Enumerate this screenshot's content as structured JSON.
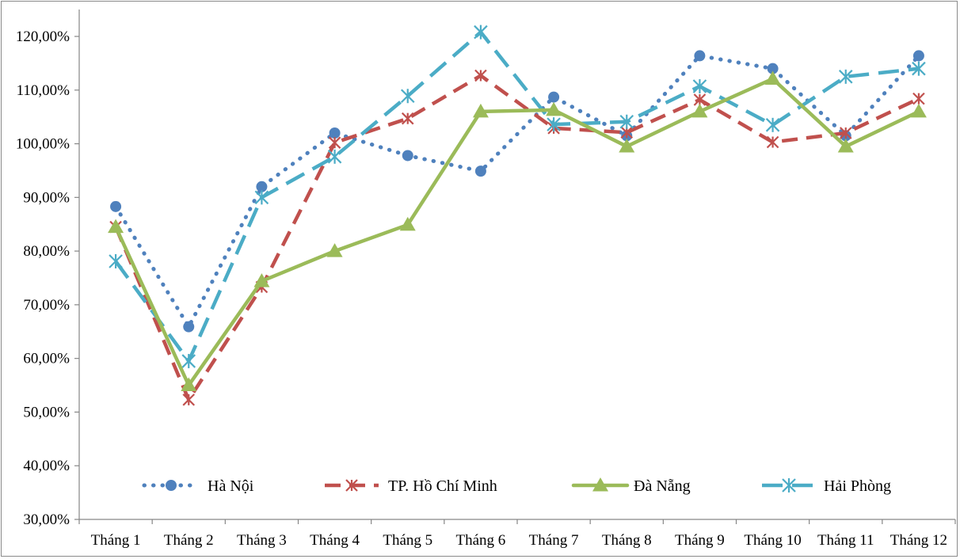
{
  "chart_data": {
    "type": "line",
    "title": "",
    "xlabel": "",
    "ylabel": "",
    "categories": [
      "Tháng 1",
      "Tháng 2",
      "Tháng 3",
      "Tháng 4",
      "Tháng 5",
      "Tháng 6",
      "Tháng 7",
      "Tháng 8",
      "Tháng 9",
      "Tháng 10",
      "Tháng 11",
      "Tháng 12"
    ],
    "y_ticks": [
      "30,00%",
      "40,00%",
      "50,00%",
      "60,00%",
      "70,00%",
      "80,00%",
      "90,00%",
      "100,00%",
      "110,00%",
      "120,00%"
    ],
    "ylim": [
      30,
      125
    ],
    "grid": false,
    "legend_position": "bottom-inside",
    "series": [
      {
        "name": "Hà Nội",
        "color": "#4f81bd",
        "style": "dotted",
        "marker": "circle",
        "values": [
          88.3,
          65.9,
          92.0,
          102.0,
          97.8,
          94.9,
          108.7,
          101.5,
          116.4,
          114.0,
          101.5,
          116.4
        ]
      },
      {
        "name": "TP. Hồ Chí Minh",
        "color": "#c0504d",
        "style": "dashed",
        "marker": "asterisk",
        "values": [
          84.5,
          52.3,
          73.3,
          100.2,
          104.7,
          112.7,
          102.9,
          102.1,
          108.2,
          100.3,
          102.0,
          108.4
        ]
      },
      {
        "name": "Đà Nẵng",
        "color": "#9bbb59",
        "style": "solid",
        "marker": "triangle",
        "values": [
          84.5,
          55.0,
          74.4,
          80.0,
          84.9,
          106.0,
          106.3,
          99.5,
          106.0,
          112.1,
          99.5,
          106.0
        ]
      },
      {
        "name": "Hải Phòng",
        "color": "#4bacc6",
        "style": "longdash",
        "marker": "star",
        "values": [
          78.1,
          59.5,
          90.0,
          97.6,
          108.9,
          120.8,
          103.6,
          104.1,
          110.7,
          103.5,
          112.5,
          114.0
        ]
      }
    ]
  }
}
